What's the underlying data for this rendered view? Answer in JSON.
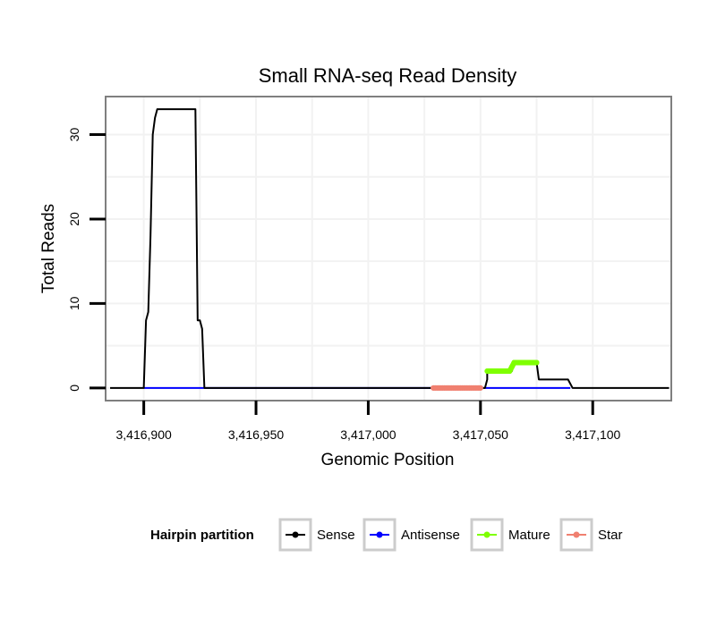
{
  "chart_data": {
    "type": "line",
    "title": "Small RNA-seq Read Density",
    "xlabel": "Genomic Position",
    "ylabel": "Total Reads",
    "xlim": [
      3416883,
      3417135
    ],
    "ylim": [
      -1.5,
      34.5
    ],
    "x_ticks": [
      3416900,
      3416950,
      3417000,
      3417050,
      3417100
    ],
    "x_tick_labels": [
      "3,416,900",
      "3,416,950",
      "3,417,000",
      "3,417,050",
      "3,417,100"
    ],
    "y_ticks": [
      0,
      10,
      20,
      30
    ],
    "y_tick_labels": [
      "0",
      "10",
      "20",
      "30"
    ],
    "legend": {
      "title": "Hairpin partition",
      "placement": "bottom",
      "entries": [
        {
          "name": "Sense",
          "color": "#000000"
        },
        {
          "name": "Antisense",
          "color": "#0000ff"
        },
        {
          "name": "Mature",
          "color": "#7fff00"
        },
        {
          "name": "Star",
          "color": "#f08070"
        }
      ]
    },
    "series": [
      {
        "name": "Sense",
        "color": "#000000",
        "points": [
          [
            3416885,
            0
          ],
          [
            3416900,
            0
          ],
          [
            3416901,
            8
          ],
          [
            3416902,
            9
          ],
          [
            3416903,
            18
          ],
          [
            3416904,
            30
          ],
          [
            3416905,
            32
          ],
          [
            3416906,
            33
          ],
          [
            3416907,
            33
          ],
          [
            3416923,
            33
          ],
          [
            3416924,
            8
          ],
          [
            3416925,
            8
          ],
          [
            3416926,
            7
          ],
          [
            3416927,
            0
          ],
          [
            3417052,
            0
          ],
          [
            3417053,
            1
          ],
          [
            3417053,
            2
          ],
          [
            3417064,
            2
          ],
          [
            3417065,
            3
          ],
          [
            3417075,
            3
          ],
          [
            3417076,
            1
          ],
          [
            3417089,
            1
          ],
          [
            3417091,
            0
          ],
          [
            3417134,
            0
          ]
        ]
      },
      {
        "name": "Antisense",
        "color": "#0000ff",
        "points": [
          [
            3416900,
            0
          ],
          [
            3416927,
            0
          ],
          [
            3417050,
            0
          ],
          [
            3417090,
            0
          ]
        ]
      },
      {
        "name": "Mature",
        "color": "#7fff00",
        "points": [
          [
            3417053,
            2
          ],
          [
            3417063,
            2
          ],
          [
            3417065,
            3
          ],
          [
            3417075,
            3
          ]
        ]
      },
      {
        "name": "Star",
        "color": "#f08070",
        "points": [
          [
            3417029,
            0
          ],
          [
            3417050,
            0
          ]
        ]
      }
    ]
  }
}
